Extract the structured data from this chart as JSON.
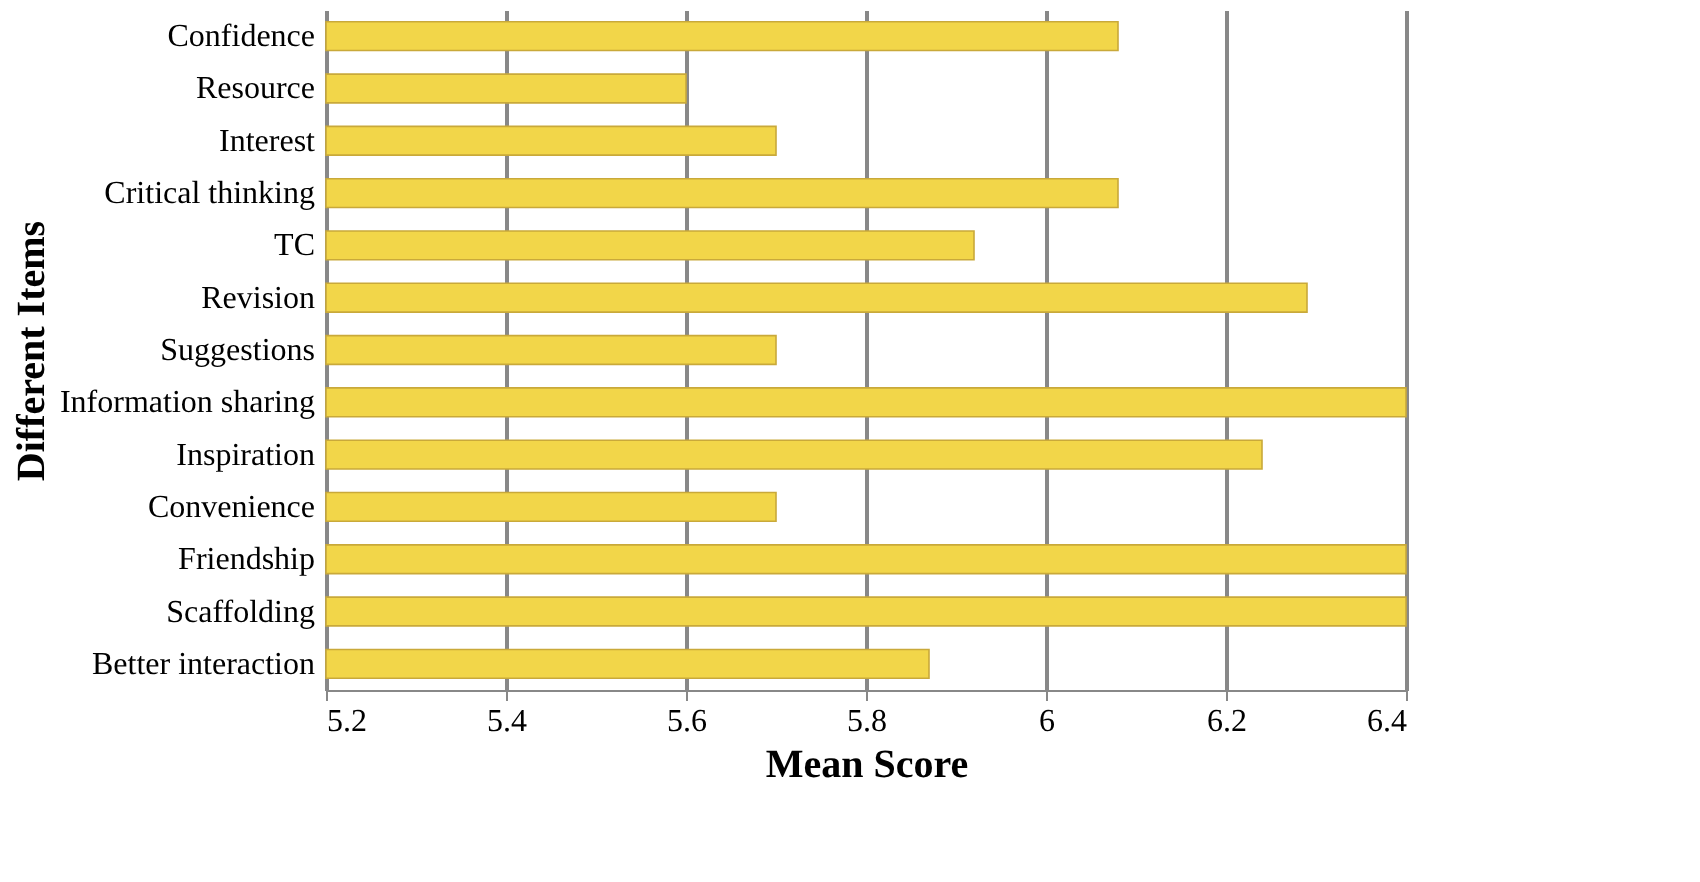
{
  "chart_data": {
    "type": "bar",
    "orientation": "horizontal",
    "xlabel": "Mean Score",
    "ylabel": "Different Items",
    "categories": [
      "Confidence",
      "Resource",
      "Interest",
      "Critical thinking",
      "TC",
      "Revision",
      "Suggestions",
      "Information sharing",
      "Inspiration",
      "Convenience",
      "Friendship",
      "Scaffolding",
      "Better interaction"
    ],
    "values": [
      6.08,
      5.6,
      5.7,
      6.08,
      5.92,
      6.29,
      5.7,
      6.4,
      6.24,
      5.7,
      6.4,
      6.4,
      5.87
    ],
    "color": "#f2d649",
    "xlim": [
      5.2,
      6.4
    ],
    "xticks": [
      5.2,
      5.4,
      5.6,
      5.8,
      6,
      6.2,
      6.4
    ],
    "grid": "x"
  }
}
